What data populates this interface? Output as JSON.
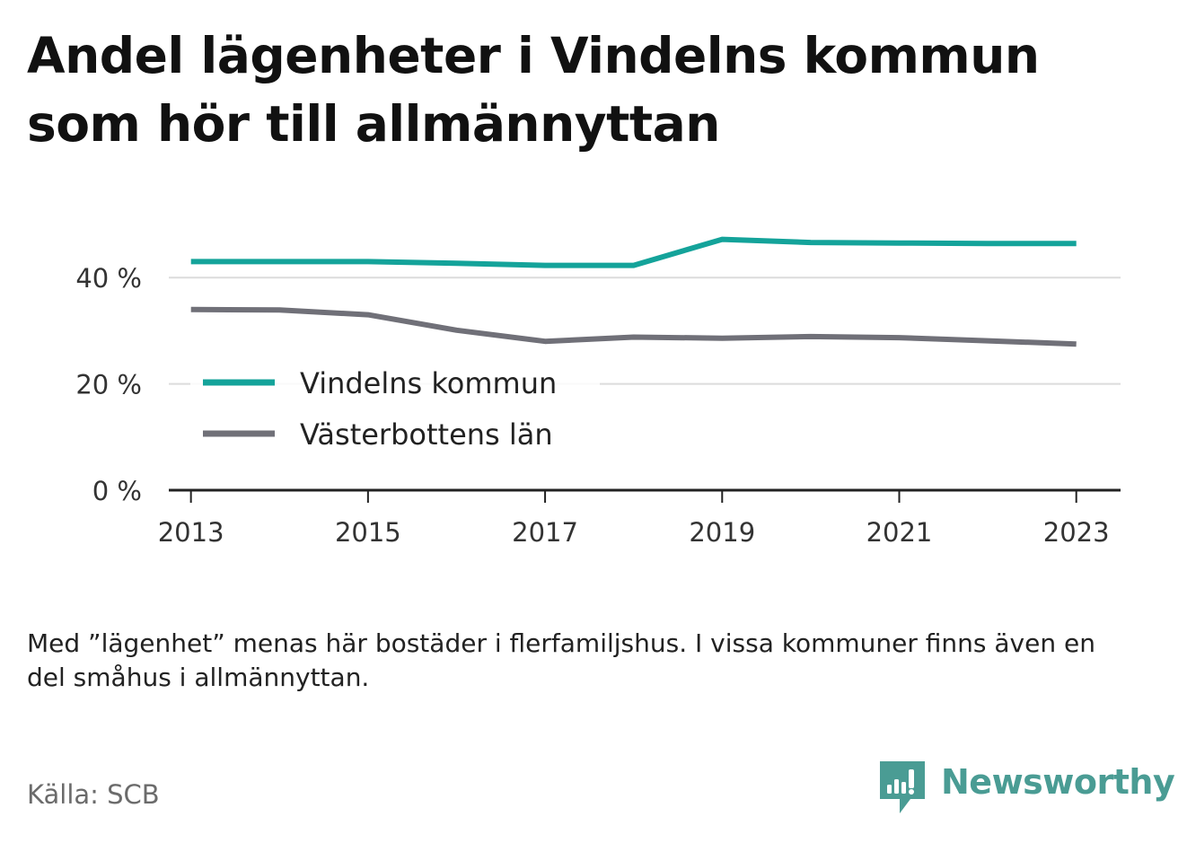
{
  "title": "Andel lägenheter i Vindelns kommun som hör till allmännyttan",
  "note": "Med ”lägenhet” menas här bostäder i flerfamiljshus. I vissa kommuner finns även en del småhus i allmännyttan.",
  "source": "Källa: SCB",
  "brand": {
    "name": "Newsworthy",
    "icon": "newsworthy-logo-icon",
    "color": "#4a9c94"
  },
  "chart_data": {
    "type": "line",
    "title": "Andel lägenheter i Vindelns kommun som hör till allmännyttan",
    "xlabel": "",
    "ylabel": "",
    "x": [
      2013,
      2014,
      2015,
      2016,
      2017,
      2018,
      2019,
      2020,
      2021,
      2022,
      2023
    ],
    "xticks": [
      2013,
      2015,
      2017,
      2019,
      2021,
      2023
    ],
    "xtick_labels": [
      "2013",
      "2015",
      "2017",
      "2019",
      "2021",
      "2023"
    ],
    "yticks": [
      0,
      20,
      40
    ],
    "ytick_labels": [
      "0 %",
      "20 %",
      "40 %"
    ],
    "ylim": [
      0,
      50
    ],
    "xlim": [
      2012.75,
      2023.5
    ],
    "grid": true,
    "legend_position": "center-left",
    "series": [
      {
        "name": "Vindelns kommun",
        "color": "#14a39a",
        "values": [
          43.0,
          43.0,
          43.0,
          42.7,
          42.3,
          42.3,
          47.2,
          46.6,
          46.5,
          46.4,
          46.4
        ]
      },
      {
        "name": "Västerbottens län",
        "color": "#707078",
        "values": [
          34.0,
          33.9,
          33.0,
          30.1,
          28.0,
          28.8,
          28.6,
          28.9,
          28.7,
          28.1,
          27.5
        ]
      }
    ]
  }
}
